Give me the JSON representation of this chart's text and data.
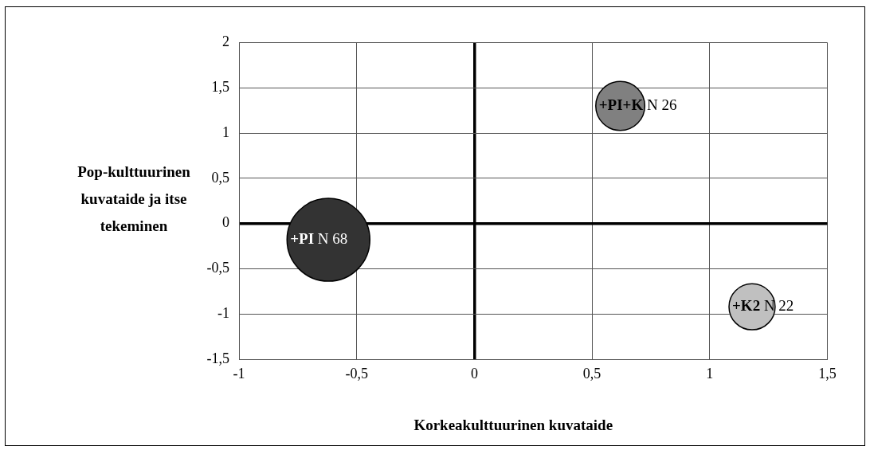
{
  "chart_data": {
    "type": "bubble",
    "xlabel": "Korkeakulttuurinen kuvataide",
    "ylabel": "Pop-kulttuurinen kuvataide ja itse tekeminen",
    "series": [
      {
        "x": [
          -0.62,
          0.62,
          1.18
        ],
        "values": [
          -0.18,
          1.3,
          -0.92
        ],
        "sizes": [
          1,
          0.35,
          0.31
        ],
        "colors": [
          "#333333",
          "#808080",
          "#c0c0c0"
        ],
        "value_labels": [
          "+PI N 68",
          "+PI+K N 26",
          "+K2 N 22"
        ]
      }
    ],
    "xlim": [
      -1,
      1.5
    ],
    "xticks": [
      {
        "value": -1,
        "label": "-1"
      },
      {
        "value": -0.5,
        "label": "-0,5"
      },
      {
        "value": 0,
        "label": "0"
      },
      {
        "value": 0.5,
        "label": "0,5"
      },
      {
        "value": 1,
        "label": "1"
      },
      {
        "value": 1.5,
        "label": "1,5"
      }
    ],
    "ylim": [
      -1.5,
      2
    ],
    "yticks": [
      {
        "value": -1.5,
        "label": "-1,5"
      },
      {
        "value": -1,
        "label": "-1"
      },
      {
        "value": -0.5,
        "label": "-0,5"
      },
      {
        "value": 0,
        "label": "0"
      },
      {
        "value": 0.5,
        "label": "0,5"
      },
      {
        "value": 1,
        "label": "1"
      },
      {
        "value": 1.5,
        "label": "1,5"
      },
      {
        "value": 2,
        "label": "2"
      }
    ],
    "grid": true,
    "legend": false
  }
}
